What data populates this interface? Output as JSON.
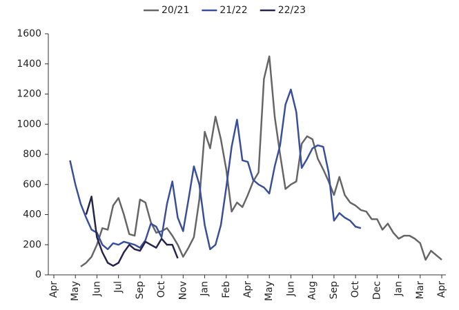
{
  "chart_data": {
    "type": "line",
    "categories": [
      "Apr",
      null,
      null,
      null,
      "May",
      null,
      null,
      null,
      "Jun",
      null,
      null,
      null,
      "Jul",
      null,
      null,
      null,
      "Sep",
      null,
      null,
      null,
      "Oct",
      null,
      null,
      null,
      "Nov",
      null,
      null,
      null,
      "Jan",
      null,
      null,
      null,
      "Feb",
      null,
      null,
      null,
      "Apr",
      null,
      null,
      null,
      "May",
      null,
      null,
      null,
      "Jun",
      null,
      null,
      null,
      "Aug",
      null,
      null,
      null,
      "Sep",
      null,
      null,
      null,
      "Oct",
      null,
      null,
      null,
      "Dec",
      null,
      null,
      null,
      "Jan",
      null,
      null,
      null,
      "Mar",
      null,
      null,
      null,
      "Apr"
    ],
    "series": [
      {
        "name": "20/21",
        "color": "#666666",
        "values": [
          null,
          null,
          null,
          null,
          null,
          55,
          80,
          120,
          200,
          310,
          300,
          460,
          510,
          400,
          270,
          260,
          500,
          480,
          350,
          280,
          290,
          310,
          260,
          200,
          120,
          180,
          250,
          500,
          950,
          840,
          1050,
          900,
          700,
          420,
          480,
          450,
          530,
          620,
          680,
          1300,
          1450,
          1050,
          800,
          570,
          600,
          620,
          870,
          920,
          900,
          770,
          700,
          620,
          530,
          650,
          530,
          480,
          460,
          430,
          420,
          370,
          370,
          300,
          340,
          280,
          240,
          260,
          260,
          240,
          210,
          100,
          160,
          130,
          100
        ]
      },
      {
        "name": "21/22",
        "color": "#3a4f9c",
        "values": [
          null,
          null,
          null,
          760,
          600,
          470,
          380,
          300,
          280,
          200,
          170,
          210,
          200,
          220,
          210,
          200,
          180,
          230,
          340,
          320,
          250,
          470,
          620,
          380,
          290,
          500,
          720,
          600,
          330,
          170,
          200,
          330,
          580,
          850,
          1030,
          760,
          750,
          630,
          600,
          580,
          540,
          720,
          860,
          1130,
          1230,
          1080,
          710,
          770,
          840,
          860,
          850,
          680,
          360,
          410,
          380,
          360,
          320,
          310,
          null,
          null,
          null,
          null,
          null,
          null,
          null,
          null,
          null,
          null,
          null,
          null,
          null,
          null,
          null
        ]
      },
      {
        "name": "22/23",
        "color": "#25244f",
        "values": [
          null,
          null,
          null,
          null,
          null,
          null,
          400,
          520,
          250,
          150,
          80,
          60,
          80,
          150,
          200,
          170,
          160,
          220,
          200,
          180,
          240,
          200,
          200,
          110,
          null,
          null,
          null,
          null,
          null,
          null,
          null,
          null,
          null,
          null,
          null,
          null,
          null,
          null,
          null,
          null,
          null,
          null,
          null,
          null,
          null,
          null,
          null,
          null,
          null,
          null,
          null,
          null,
          null,
          null,
          null,
          null,
          null,
          null,
          null,
          null,
          null,
          null,
          null,
          null,
          null,
          null,
          null,
          null,
          null,
          null,
          null,
          null,
          null
        ]
      }
    ],
    "ylim": [
      0,
      1600
    ],
    "yticks": [
      0,
      200,
      400,
      600,
      800,
      1000,
      1200,
      1400,
      1600
    ],
    "grid": false,
    "legend": "top"
  }
}
